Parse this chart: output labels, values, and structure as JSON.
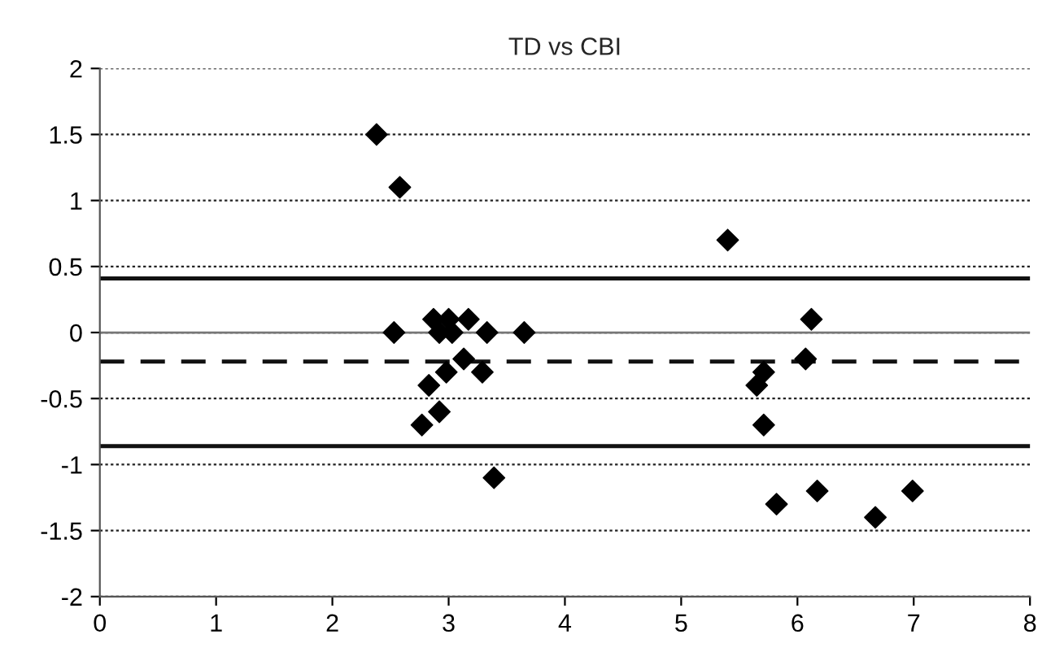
{
  "chart_data": {
    "type": "scatter",
    "title": "TD vs CBI",
    "x": [
      2.38,
      2.58,
      2.53,
      2.87,
      3.0,
      2.92,
      3.03,
      3.17,
      3.33,
      3.65,
      3.13,
      2.98,
      3.29,
      2.83,
      2.92,
      2.77,
      3.39,
      5.4,
      6.12,
      6.07,
      5.71,
      5.65,
      5.71,
      5.82,
      6.17,
      6.67,
      6.99
    ],
    "values": [
      1.5,
      1.1,
      0,
      0.1,
      0.1,
      0,
      0,
      0.1,
      0,
      0,
      -0.2,
      -0.3,
      -0.3,
      -0.4,
      -0.6,
      -0.7,
      -1.1,
      0.7,
      0.1,
      -0.2,
      -0.3,
      -0.4,
      -0.7,
      -1.3,
      -1.2,
      -1.4,
      -1.2
    ],
    "color": "#000000",
    "marker": "diamond",
    "xlim": [
      0,
      8
    ],
    "xticks": [
      0,
      1,
      2,
      3,
      4,
      5,
      6,
      7,
      8
    ],
    "ylim": [
      -2,
      2
    ],
    "yticks": [
      -2,
      -1.5,
      -1,
      -0.5,
      0,
      0.5,
      1,
      1.5,
      2
    ],
    "grid": "y",
    "ref_lines": [
      {
        "axis": "y",
        "value": 0,
        "color": "#777777",
        "line_style": "solid"
      },
      {
        "axis": "y",
        "value": 0.41,
        "color": "#111111",
        "line_style": "solid"
      },
      {
        "axis": "y",
        "value": -0.22,
        "color": "#111111",
        "line_style": "dashed"
      },
      {
        "axis": "y",
        "value": -0.86,
        "color": "#111111",
        "line_style": "solid"
      }
    ]
  }
}
